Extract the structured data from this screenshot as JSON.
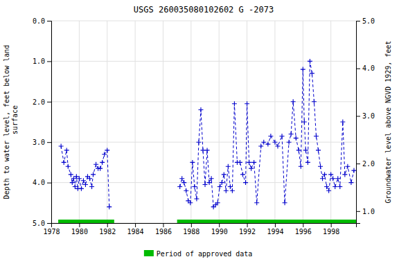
{
  "chart_data": {
    "type": "line",
    "title": "USGS 260035080102602 G  -2073",
    "y_label": "Depth to water level, feet below land\n surface",
    "y2_label": "Groundwater level above NGVD 1929, feet",
    "xlim": [
      1978,
      1999.8
    ],
    "xticks": [
      1978,
      1980,
      1982,
      1984,
      1986,
      1988,
      1990,
      1992,
      1994,
      1996,
      1998
    ],
    "ylim": [
      5.0,
      0.0
    ],
    "yticks": [
      {
        "value": 0.0,
        "label": "0.0"
      },
      {
        "value": 1.0,
        "label": "1.0"
      },
      {
        "value": 2.0,
        "label": "2.0"
      },
      {
        "value": 3.0,
        "label": "3.0"
      },
      {
        "value": 4.0,
        "label": "4.0"
      },
      {
        "value": 5.0,
        "label": "5.0"
      }
    ],
    "y2lim": [
      0.75,
      5.0
    ],
    "y2ticks": [
      {
        "value": 1.0,
        "label": "1.0"
      },
      {
        "value": 2.0,
        "label": "2.0"
      },
      {
        "value": 3.0,
        "label": "3.0"
      },
      {
        "value": 4.0,
        "label": "4.0"
      },
      {
        "value": 5.0,
        "label": "5.0"
      }
    ],
    "grid": true,
    "legend": "bottom",
    "series": [
      {
        "color": "#0000CC",
        "marker": "plus",
        "line_style": "dashed",
        "x": [
          1978.7,
          1978.9,
          1979.1,
          1979.2,
          1979.4,
          1979.5,
          1979.6,
          1979.7,
          1979.8,
          1979.9,
          1980.0,
          1980.15,
          1980.3,
          1980.45,
          1980.6,
          1980.75,
          1980.9,
          1981.0,
          1981.2,
          1981.35,
          1981.5,
          1981.65,
          1981.8,
          1982.0,
          1982.15
        ],
        "values": [
          3.1,
          3.5,
          3.2,
          3.6,
          3.8,
          4.0,
          3.9,
          4.1,
          3.85,
          4.15,
          3.9,
          4.15,
          3.95,
          4.05,
          3.85,
          3.9,
          4.1,
          3.8,
          3.55,
          3.65,
          3.65,
          3.5,
          3.3,
          3.2,
          4.6
        ]
      },
      {
        "color": "#0000CC",
        "marker": "plus",
        "line_style": "dashed",
        "x": [
          1987.2,
          1987.35,
          1987.5,
          1987.65,
          1987.8,
          1987.95,
          1988.1,
          1988.25,
          1988.4,
          1988.55,
          1988.7,
          1988.85,
          1989.0,
          1989.15,
          1989.3,
          1989.45,
          1989.6,
          1989.75,
          1989.9,
          1990.05,
          1990.2,
          1990.35,
          1990.5,
          1990.65,
          1990.8,
          1990.95,
          1991.1,
          1991.3,
          1991.5,
          1991.7,
          1991.9,
          1992.0,
          1992.15,
          1992.3,
          1992.5,
          1992.7,
          1993.0,
          1993.2,
          1993.5,
          1993.7,
          1994.0,
          1994.2,
          1994.5,
          1994.7,
          1995.0,
          1995.15,
          1995.3,
          1995.5,
          1995.7,
          1995.85,
          1996.0,
          1996.1,
          1996.2,
          1996.35,
          1996.5,
          1996.65,
          1996.8,
          1996.95,
          1997.1,
          1997.25,
          1997.4,
          1997.55,
          1997.7,
          1997.85,
          1998.0,
          1998.15,
          1998.3,
          1998.5,
          1998.65,
          1998.85,
          1999.0,
          1999.2,
          1999.45,
          1999.65
        ],
        "values": [
          4.1,
          3.9,
          4.0,
          4.2,
          4.45,
          4.5,
          3.5,
          4.1,
          4.4,
          3.0,
          2.2,
          3.2,
          4.05,
          3.2,
          4.0,
          3.9,
          4.6,
          4.55,
          4.5,
          4.1,
          4.0,
          3.8,
          4.2,
          3.6,
          4.1,
          4.2,
          2.05,
          3.5,
          3.5,
          3.8,
          4.0,
          2.05,
          3.5,
          3.65,
          3.5,
          4.5,
          3.1,
          3.0,
          3.05,
          2.85,
          3.0,
          3.1,
          2.85,
          4.5,
          3.0,
          2.8,
          2.0,
          2.9,
          3.2,
          3.6,
          1.2,
          2.5,
          3.2,
          3.5,
          1.0,
          1.3,
          2.0,
          2.85,
          3.2,
          3.6,
          3.9,
          3.8,
          4.1,
          4.2,
          3.8,
          3.9,
          4.1,
          3.9,
          4.1,
          2.5,
          3.8,
          3.6,
          4.0,
          3.7
        ]
      },
      {
        "name": "Period of approved data",
        "type": "span",
        "color": "#00BB00",
        "x_ranges": [
          [
            1978.5,
            1982.5
          ],
          [
            1987.0,
            1999.8
          ]
        ]
      }
    ]
  }
}
